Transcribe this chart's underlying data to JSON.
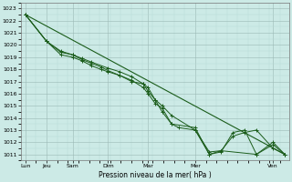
{
  "background_color": "#cceae6",
  "grid_color_major": "#9ab8b5",
  "grid_color_minor": "#b8d8d5",
  "line_color": "#1a5c1a",
  "marker_color": "#1a5c1a",
  "xlabel": "Pression niveau de la mer( hPa )",
  "ylim": [
    1010.5,
    1023.5
  ],
  "yticks": [
    1011,
    1012,
    1013,
    1014,
    1015,
    1016,
    1017,
    1018,
    1019,
    1020,
    1021,
    1022,
    1023
  ],
  "xlim": [
    -0.2,
    11.2
  ],
  "x_label_texts": [
    "Lun",
    "Jeu",
    "Sam",
    "Dim",
    "Mar",
    "Mer",
    "Ven"
  ],
  "x_major_ticks": [
    0,
    0.9,
    2.0,
    3.5,
    5.2,
    7.2,
    10.5
  ],
  "series1_x": [
    0.0,
    0.9,
    1.5,
    2.0,
    2.4,
    2.8,
    3.2,
    3.5,
    4.0,
    4.5,
    5.0,
    5.2,
    5.5,
    5.8,
    6.2,
    6.5,
    7.2,
    7.8,
    8.3,
    8.8,
    9.3,
    9.8,
    10.5,
    11.0
  ],
  "series1_y": [
    1022.5,
    1020.3,
    1019.2,
    1019.0,
    1018.7,
    1018.3,
    1018.0,
    1017.8,
    1017.5,
    1017.0,
    1016.8,
    1016.5,
    1015.5,
    1014.5,
    1013.5,
    1013.2,
    1013.0,
    1011.2,
    1011.3,
    1012.5,
    1012.8,
    1013.0,
    1011.5,
    1011.0
  ],
  "series2_x": [
    0.0,
    0.9,
    1.5,
    2.0,
    2.4,
    2.8,
    3.2,
    3.5,
    4.0,
    4.5,
    5.0,
    5.2,
    5.5,
    5.8,
    6.2,
    7.2,
    7.8,
    8.3,
    8.8,
    9.3,
    9.8,
    10.5,
    11.0
  ],
  "series2_y": [
    1022.5,
    1020.3,
    1019.4,
    1019.2,
    1018.8,
    1018.5,
    1018.2,
    1017.9,
    1017.5,
    1017.1,
    1016.5,
    1016.0,
    1015.2,
    1014.8,
    1013.5,
    1013.2,
    1011.0,
    1011.2,
    1012.8,
    1013.0,
    1011.0,
    1012.0,
    1011.0
  ],
  "series3_x": [
    0.0,
    0.9,
    1.5,
    2.0,
    2.4,
    2.8,
    3.5,
    4.0,
    4.5,
    5.0,
    5.2,
    5.5,
    5.8,
    6.2,
    7.2,
    7.8,
    8.3,
    9.8,
    10.5,
    11.0
  ],
  "series3_y": [
    1022.5,
    1020.3,
    1019.5,
    1019.2,
    1018.9,
    1018.6,
    1018.1,
    1017.8,
    1017.4,
    1016.8,
    1016.2,
    1015.5,
    1015.0,
    1014.2,
    1013.0,
    1011.0,
    1011.3,
    1011.0,
    1011.8,
    1011.0
  ],
  "trend_x": [
    0.0,
    11.0
  ],
  "trend_y": [
    1022.5,
    1011.0
  ]
}
